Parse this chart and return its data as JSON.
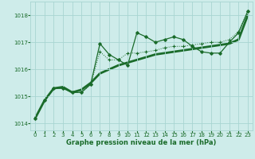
{
  "bg_color": "#ceecea",
  "grid_color": "#a8d5d2",
  "line_color": "#1a6b2a",
  "x_values": [
    0,
    1,
    2,
    3,
    4,
    5,
    6,
    7,
    8,
    9,
    10,
    11,
    12,
    13,
    14,
    15,
    16,
    17,
    18,
    19,
    20,
    21,
    22,
    23
  ],
  "series_spiky": [
    1014.2,
    1014.85,
    1015.3,
    1015.3,
    1015.15,
    1015.15,
    1015.45,
    1016.95,
    1016.55,
    1016.35,
    1016.15,
    1017.35,
    1017.2,
    1017.0,
    1017.1,
    1017.2,
    1017.1,
    1016.85,
    1016.65,
    1016.6,
    1016.6,
    1017.0,
    1017.35,
    1018.15
  ],
  "series_dotted": [
    1014.2,
    1014.85,
    1015.3,
    1015.3,
    1015.15,
    1015.15,
    1015.45,
    1016.65,
    1016.35,
    1016.35,
    1016.6,
    1016.6,
    1016.65,
    1016.7,
    1016.8,
    1016.85,
    1016.85,
    1016.9,
    1016.95,
    1017.0,
    1017.0,
    1017.1,
    1017.4,
    1018.15
  ],
  "series_smooth": [
    1014.2,
    1014.85,
    1015.3,
    1015.35,
    1015.15,
    1015.25,
    1015.5,
    1015.85,
    1016.0,
    1016.15,
    1016.25,
    1016.35,
    1016.45,
    1016.55,
    1016.6,
    1016.65,
    1016.7,
    1016.75,
    1016.8,
    1016.85,
    1016.9,
    1016.95,
    1017.1,
    1018.0
  ],
  "xlabel": "Graphe pression niveau de la mer (hPa)",
  "ylim": [
    1013.75,
    1018.5
  ],
  "xlim": [
    -0.5,
    23.5
  ],
  "yticks": [
    1014,
    1015,
    1016,
    1017,
    1018
  ],
  "xticks": [
    0,
    1,
    2,
    3,
    4,
    5,
    6,
    7,
    8,
    9,
    10,
    11,
    12,
    13,
    14,
    15,
    16,
    17,
    18,
    19,
    20,
    21,
    22,
    23
  ]
}
